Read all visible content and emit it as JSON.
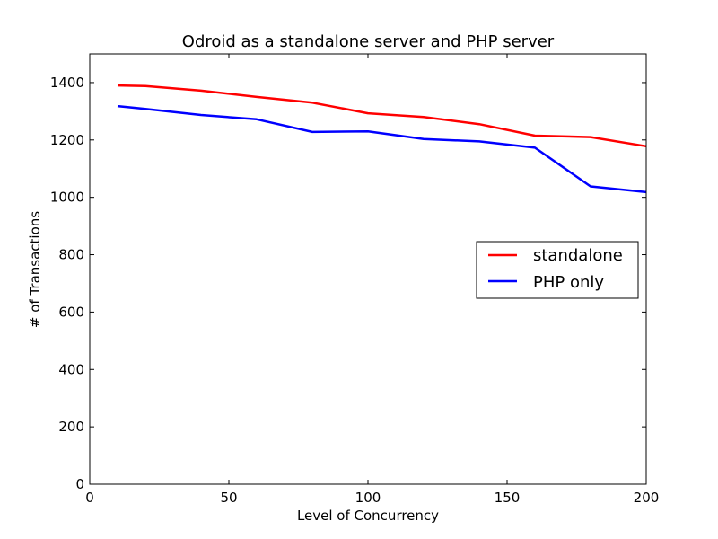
{
  "chart_data": {
    "type": "line",
    "title": "Odroid as a standalone server and PHP server",
    "xlabel": "Level of Concurrency",
    "ylabel": "# of Transactions",
    "xlim": [
      0,
      200
    ],
    "ylim": [
      0,
      1500
    ],
    "xticks": [
      0,
      50,
      100,
      150,
      200
    ],
    "yticks": [
      0,
      200,
      400,
      600,
      800,
      1000,
      1200,
      1400
    ],
    "grid": false,
    "legend_position": "center-right",
    "x": [
      10,
      20,
      40,
      60,
      80,
      100,
      120,
      140,
      160,
      180,
      200
    ],
    "series": [
      {
        "name": "standalone",
        "color": "#ff0000",
        "values": [
          1390,
          1388,
          1372,
          1350,
          1330,
          1293,
          1280,
          1255,
          1215,
          1210,
          1178
        ]
      },
      {
        "name": "PHP only",
        "color": "#0000ff",
        "values": [
          1318,
          1308,
          1287,
          1272,
          1228,
          1230,
          1203,
          1195,
          1173,
          1038,
          1018
        ]
      }
    ]
  }
}
